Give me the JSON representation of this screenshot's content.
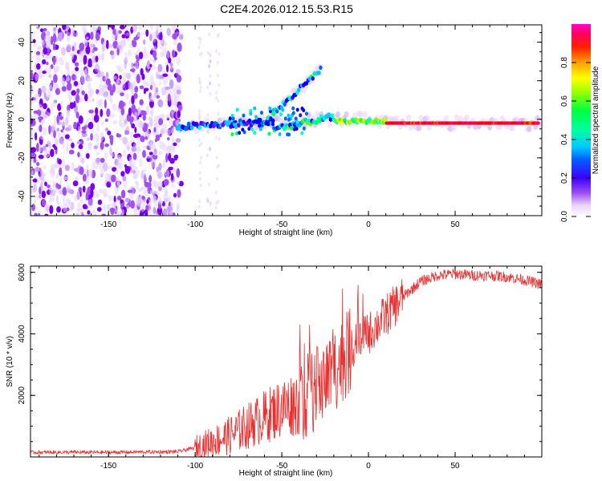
{
  "title": "C2E4.2026.012.15.53.R15",
  "colors": {
    "snr_line": "#e83030",
    "axis": "#000000",
    "colormap": [
      "#ffffff",
      "#e6d2fa",
      "#c8a0f5",
      "#a050f0",
      "#7a00ee",
      "#3c00ff",
      "#0000ff",
      "#0064ff",
      "#00c8ff",
      "#00ffc8",
      "#00ff50",
      "#64ff00",
      "#c8ff00",
      "#ffff00",
      "#ffc800",
      "#ff6400",
      "#ff0000",
      "#ff0064",
      "#ff00c8"
    ]
  },
  "chart_data": [
    {
      "type": "heatmap",
      "xlabel": "Height of straight line (km)",
      "ylabel": "Frequency (Hz)",
      "xlim": [
        -195,
        100
      ],
      "ylim": [
        -50,
        49
      ],
      "xticks": [
        -150,
        -100,
        -50,
        0,
        50
      ],
      "xtick_labels": [
        "-150",
        "-100",
        "-50",
        "0",
        "50"
      ],
      "yticks": [
        -40,
        -20,
        0,
        20,
        40
      ],
      "ytick_labels": [
        "-40",
        "-20",
        "0",
        "20",
        "40"
      ],
      "colorbar": {
        "label": "Normalized spectral amplitude",
        "range": [
          0,
          1
        ],
        "ticks": [
          0,
          0.2,
          0.4,
          0.6,
          0.8
        ],
        "tick_labels": [
          "0.0",
          "0.2",
          "0.4",
          "0.6",
          "0.8"
        ]
      },
      "features": [
        {
          "name": "central tone",
          "x": [
            -110,
            100
          ],
          "freq": [
            -2,
            -2
          ],
          "amplitude": [
            0.35,
            0.95
          ]
        },
        {
          "name": "rising branch",
          "x": [
            -60,
            -27
          ],
          "freq": [
            -3,
            26
          ],
          "amplitude": [
            0.3,
            0.55
          ]
        },
        {
          "name": "broadband noise",
          "x": [
            -195,
            -108
          ],
          "freq": [
            -50,
            49
          ],
          "amplitude": [
            0.05,
            0.2
          ]
        }
      ]
    },
    {
      "type": "line",
      "xlabel": "Height of straight line (km)",
      "ylabel": "SNR (10 * v/v)",
      "xlim": [
        -195,
        100
      ],
      "ylim": [
        0,
        6200
      ],
      "xticks": [
        -150,
        -100,
        -50,
        0,
        50
      ],
      "xtick_labels": [
        "-150",
        "-100",
        "-50",
        "0",
        "50"
      ],
      "yticks": [
        2000,
        4000,
        6000
      ],
      "ytick_labels": [
        "2000",
        "4000",
        "6000"
      ],
      "series": [
        {
          "name": "SNR",
          "x": [
            -195,
            -150,
            -110,
            -100,
            -90,
            -80,
            -70,
            -60,
            -50,
            -40,
            -30,
            -20,
            -10,
            0,
            10,
            20,
            30,
            40,
            50,
            60,
            70,
            80,
            90,
            100
          ],
          "y": [
            150,
            150,
            170,
            300,
            500,
            700,
            1000,
            1300,
            1600,
            1800,
            2200,
            2800,
            3500,
            4000,
            4600,
            5200,
            5700,
            5900,
            5950,
            5900,
            5900,
            5850,
            5750,
            5600
          ]
        }
      ]
    }
  ]
}
